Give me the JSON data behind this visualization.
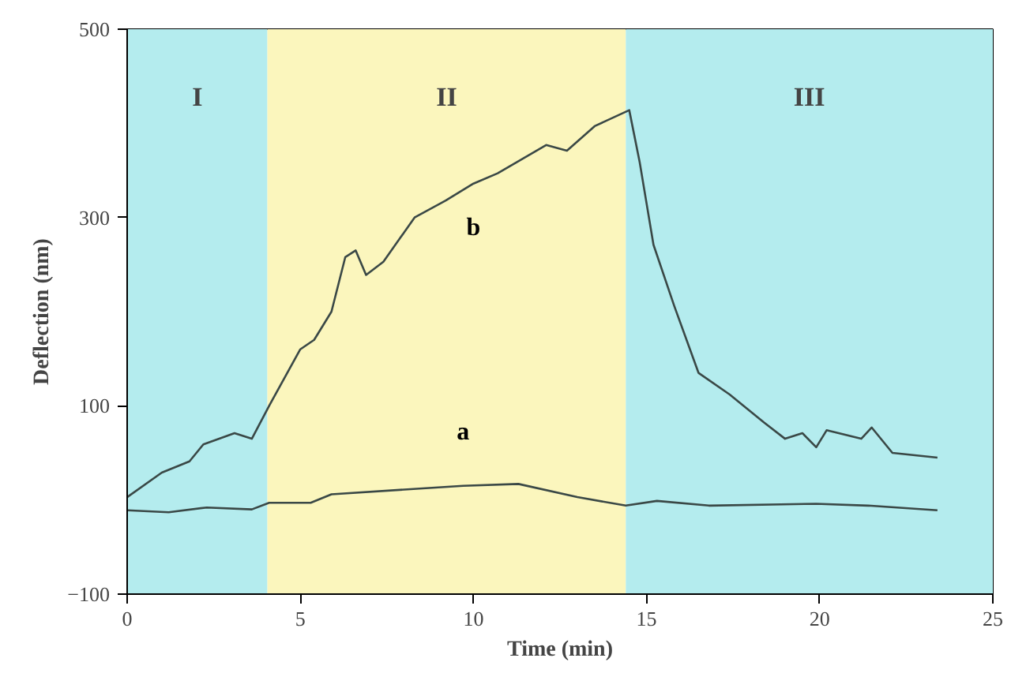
{
  "chart_data": {
    "type": "line",
    "xlabel": "Time (min)",
    "ylabel": "Deflection (nm)",
    "xlim": [
      0,
      25
    ],
    "xticks": [
      0,
      5,
      10,
      15,
      20,
      25
    ],
    "ylim": [
      -100,
      500
    ],
    "yticks": [
      -100,
      100,
      300,
      500
    ],
    "grid": false,
    "marker": "none",
    "line_style": "solid",
    "bands": [
      {
        "axis": "x",
        "from": 0,
        "to": 4.05,
        "label": "I",
        "color": "#b4ecee"
      },
      {
        "axis": "x",
        "from": 4.05,
        "to": 14.4,
        "label": "II",
        "color": "#fbf6bd"
      },
      {
        "axis": "x",
        "from": 14.4,
        "to": 25,
        "label": "III",
        "color": "#b4ecee"
      }
    ],
    "series": [
      {
        "name": "b",
        "color": "#3a4846",
        "x": [
          0,
          1.0,
          1.8,
          2.2,
          3.1,
          3.6,
          4.1,
          5.0,
          5.4,
          5.9,
          6.3,
          6.6,
          6.9,
          7.4,
          8.3,
          9.2,
          10.0,
          10.7,
          12.1,
          12.7,
          13.5,
          14.5,
          14.8,
          15.2,
          15.8,
          16.5,
          17.4,
          18.4,
          19.0,
          19.5,
          19.9,
          20.2,
          21.2,
          21.5,
          22.1,
          23.4
        ],
        "values": [
          3,
          29,
          41,
          59,
          71,
          65,
          100,
          160,
          170,
          200,
          258,
          265,
          239,
          253,
          300,
          318,
          336,
          347,
          377,
          371,
          397,
          414,
          359,
          271,
          206,
          135,
          112,
          82,
          65,
          71,
          56,
          74,
          65,
          77,
          50,
          45
        ]
      },
      {
        "name": "a",
        "color": "#3a4846",
        "x": [
          0,
          1.2,
          2.3,
          3.6,
          4.1,
          5.3,
          5.9,
          8.0,
          9.7,
          11.3,
          13.0,
          14.4,
          15.3,
          16.8,
          19.9,
          21.4,
          23.4
        ],
        "values": [
          -11,
          -13,
          -8,
          -10,
          -3,
          -3,
          6,
          11,
          15,
          17,
          3,
          -6,
          -1,
          -6,
          -4,
          -6,
          -11
        ]
      }
    ]
  }
}
